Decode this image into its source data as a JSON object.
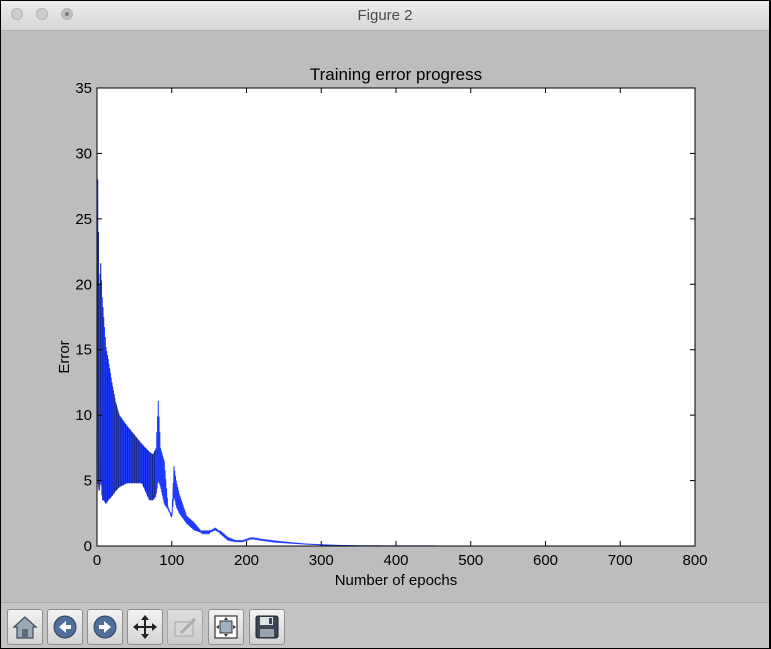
{
  "window": {
    "title": "Figure 2"
  },
  "toolbar": {
    "buttons": [
      {
        "name": "home-button",
        "icon": "home-icon"
      },
      {
        "name": "back-button",
        "icon": "back-arrow-icon"
      },
      {
        "name": "forward-button",
        "icon": "forward-arrow-icon"
      },
      {
        "name": "pan-button",
        "icon": "move-arrows-icon"
      },
      {
        "name": "zoom-button",
        "icon": "zoom-rect-icon",
        "disabled": true
      },
      {
        "name": "subplots-button",
        "icon": "subplots-config-icon"
      },
      {
        "name": "save-button",
        "icon": "floppy-disk-icon"
      }
    ]
  },
  "colors": {
    "line": "#1f3bff",
    "background": "#bdbdbd",
    "axes_bg": "#ffffff"
  },
  "chart_data": {
    "type": "line",
    "title": "Training error progress",
    "xlabel": "Number of epochs",
    "ylabel": "Error",
    "xlim": [
      0,
      800
    ],
    "ylim": [
      0,
      35
    ],
    "xticks": [
      "0",
      "100",
      "200",
      "300",
      "400",
      "500",
      "600",
      "700",
      "800"
    ],
    "yticks": [
      "0",
      "5",
      "10",
      "15",
      "20",
      "25",
      "30",
      "35"
    ],
    "grid": false,
    "series": [
      {
        "values_note": "error per epoch; oscillating envelope early, then smooth decay",
        "x": [
          1,
          3,
          5,
          7,
          9,
          12,
          15,
          20,
          25,
          30,
          40,
          50,
          60,
          70,
          75,
          79,
          82,
          85,
          90,
          95,
          100,
          103,
          106,
          110,
          120,
          130,
          140,
          150,
          158,
          165,
          175,
          185,
          195,
          205,
          210,
          220,
          240,
          260,
          280,
          300,
          320,
          350,
          400,
          450,
          500
        ],
        "upper": [
          28,
          20,
          21.6,
          19,
          17.5,
          15.2,
          14.3,
          12.5,
          11,
          10,
          9.2,
          8.5,
          7.8,
          7.2,
          7,
          7.5,
          11.1,
          7.5,
          6.5,
          3,
          2.3,
          6.1,
          5,
          4,
          2.3,
          1.8,
          1.1,
          1.1,
          1.4,
          1.1,
          0.6,
          0.4,
          0.4,
          0.6,
          0.6,
          0.5,
          0.35,
          0.25,
          0.15,
          0.1,
          0.05,
          0.02,
          0.01,
          0.005,
          0.002
        ],
        "lower": [
          5,
          4,
          5,
          3.5,
          3.5,
          3.2,
          3.5,
          3.8,
          4.2,
          4.5,
          4.8,
          4.8,
          4.8,
          3.5,
          3.5,
          3.8,
          5,
          4.5,
          3.2,
          2.8,
          2.2,
          3.8,
          3,
          2.5,
          1.7,
          1.2,
          1.0,
          1.0,
          1.2,
          1.0,
          0.5,
          0.35,
          0.35,
          0.55,
          0.55,
          0.45,
          0.3,
          0.22,
          0.14,
          0.09,
          0.05,
          0.02,
          0.01,
          0.005,
          0.002
        ]
      }
    ]
  }
}
